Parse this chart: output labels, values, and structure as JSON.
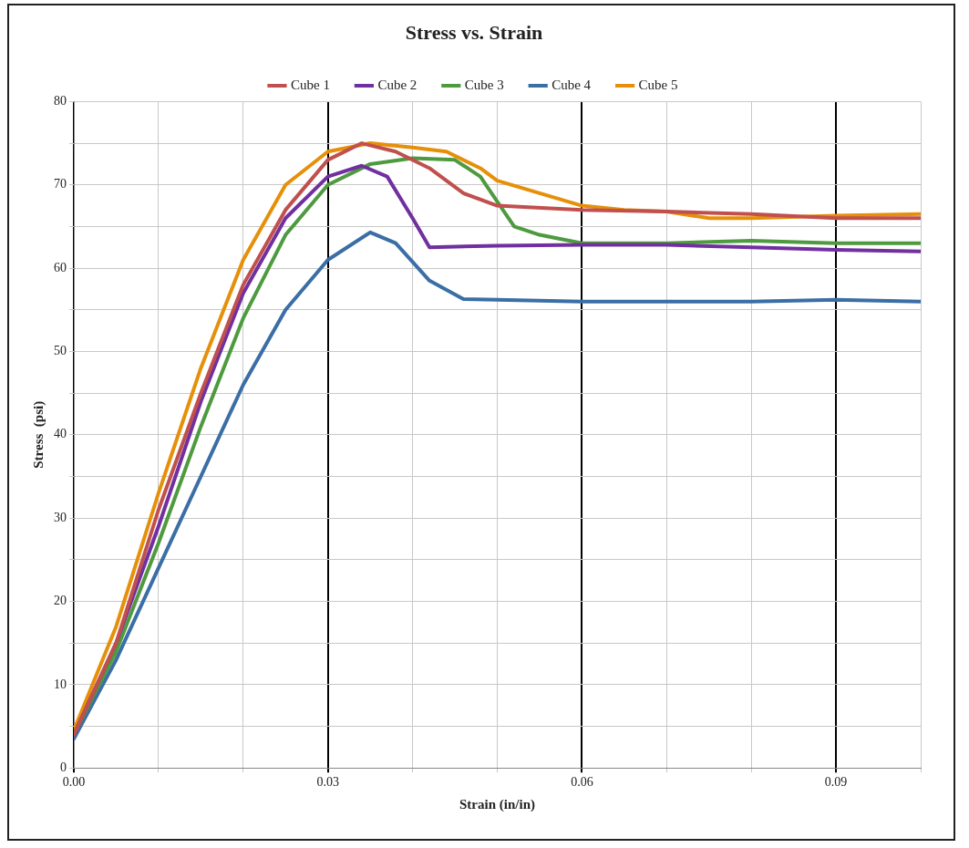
{
  "chart_data": {
    "type": "line",
    "title": "Stress vs. Strain",
    "xlabel": "Strain (in/in)",
    "ylabel": "Stress  (psi)",
    "xlim": [
      0,
      0.1
    ],
    "xticks": [
      {
        "value": 0,
        "label": "0.00"
      },
      {
        "value": 0.01,
        "label": null
      },
      {
        "value": 0.02,
        "label": null
      },
      {
        "value": 0.03,
        "label": "0.03"
      },
      {
        "value": 0.04,
        "label": null
      },
      {
        "value": 0.05,
        "label": null
      },
      {
        "value": 0.06,
        "label": "0.06"
      },
      {
        "value": 0.07,
        "label": null
      },
      {
        "value": 0.08,
        "label": null
      },
      {
        "value": 0.09,
        "label": "0.09"
      },
      {
        "value": 0.1,
        "label": null
      }
    ],
    "ylim": [
      0,
      80
    ],
    "yticks": [
      0,
      {
        "value": 5,
        "label": null
      },
      10,
      {
        "value": 15,
        "label": null
      },
      20,
      {
        "value": 25,
        "label": null
      },
      30,
      {
        "value": 35,
        "label": null
      },
      40,
      {
        "value": 45,
        "label": null
      },
      50,
      {
        "value": 55,
        "label": null
      },
      60,
      {
        "value": 65,
        "label": null
      },
      70,
      {
        "value": 75,
        "label": null
      },
      80
    ],
    "grid": true,
    "legend": "top",
    "marker": "none",
    "line_style": "solid",
    "series": [
      {
        "name": "Cube 1",
        "color": "#c0504d",
        "x": [
          0,
          0.005,
          0.01,
          0.015,
          0.02,
          0.025,
          0.03,
          0.034,
          0.038,
          0.042,
          0.046,
          0.05,
          0.06,
          0.07,
          0.08,
          0.09,
          0.1
        ],
        "values": [
          4,
          15,
          31,
          45,
          58,
          67,
          73,
          75,
          74,
          72,
          69,
          67.5,
          67,
          66.8,
          66.5,
          66,
          66
        ]
      },
      {
        "name": "Cube 2",
        "color": "#7030a0",
        "x": [
          0,
          0.005,
          0.01,
          0.015,
          0.02,
          0.025,
          0.03,
          0.034,
          0.037,
          0.04,
          0.042,
          0.05,
          0.06,
          0.07,
          0.08,
          0.09,
          0.1
        ],
        "values": [
          4,
          15,
          29,
          44,
          57,
          66,
          71,
          72.3,
          71,
          66,
          62.5,
          62.7,
          62.8,
          62.8,
          62.5,
          62.2,
          62
        ]
      },
      {
        "name": "Cube 3",
        "color": "#4e9a3f",
        "x": [
          0,
          0.005,
          0.01,
          0.015,
          0.02,
          0.025,
          0.03,
          0.035,
          0.04,
          0.045,
          0.048,
          0.05,
          0.052,
          0.055,
          0.06,
          0.07,
          0.08,
          0.09,
          0.1
        ],
        "values": [
          4,
          14,
          27,
          41,
          54,
          64,
          70,
          72.5,
          73.2,
          73,
          71,
          68,
          65,
          64,
          63,
          63,
          63.3,
          63,
          63
        ]
      },
      {
        "name": "Cube 4",
        "color": "#3a6ea5",
        "x": [
          0,
          0.005,
          0.01,
          0.015,
          0.02,
          0.025,
          0.03,
          0.035,
          0.038,
          0.042,
          0.046,
          0.05,
          0.06,
          0.07,
          0.08,
          0.09,
          0.1
        ],
        "values": [
          3.5,
          13,
          24,
          35,
          46,
          55,
          61,
          64.3,
          63,
          58.5,
          56.3,
          56.2,
          56,
          56,
          56,
          56.2,
          56
        ]
      },
      {
        "name": "Cube 5",
        "color": "#e6900a",
        "x": [
          0,
          0.005,
          0.01,
          0.015,
          0.02,
          0.025,
          0.03,
          0.035,
          0.04,
          0.044,
          0.048,
          0.05,
          0.055,
          0.06,
          0.065,
          0.07,
          0.075,
          0.08,
          0.09,
          0.1
        ],
        "values": [
          4.5,
          17,
          33,
          48,
          61,
          70,
          74,
          75,
          74.5,
          74,
          72,
          70.5,
          69,
          67.5,
          67,
          66.8,
          66,
          66,
          66.3,
          66.5
        ]
      }
    ]
  }
}
